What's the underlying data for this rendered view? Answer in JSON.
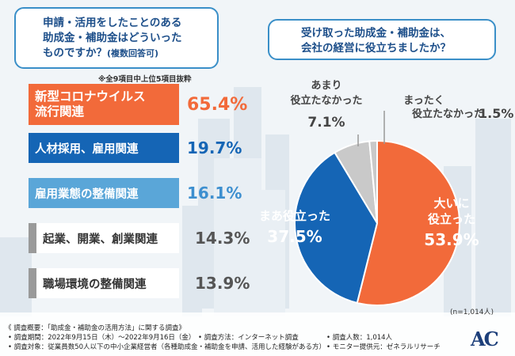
{
  "left_panel": {
    "question_line1": "申請・活用をしたことのある",
    "question_line2": "助成金・補助金はどういった",
    "question_line3": "ものですか？",
    "question_suffix": "(複数回答可)",
    "note": "※全9項目中上位5項目抜粋"
  },
  "right_panel": {
    "question_line1": "受け取った助成金・補助金は、",
    "question_line2": "会社の経営に役立ちましたか？",
    "respondents": "(n=1,014人)"
  },
  "colors": {
    "orange": "#f26a3a",
    "blue": "#1565b5",
    "light_blue": "#5aa6d8",
    "gray": "#9a9a9a",
    "light_gray": "#c9c9c9"
  },
  "chart_data": [
    {
      "type": "bar",
      "orientation": "horizontal",
      "title": "申請・活用をしたことのある助成金・補助金はどういったものですか？(複数回答可)",
      "categories": [
        "新型コロナウイルス流行関連",
        "人材採用、雇用関連",
        "雇用業態の整備関連",
        "起業、開業、創業関連",
        "職場環境の整備関連"
      ],
      "label_lines": [
        [
          "新型コロナウイルス",
          "流行関連"
        ],
        [
          "人材採用、雇用関連"
        ],
        [
          "雇用業態の整備関連"
        ],
        [
          "起業、開業、創業関連"
        ],
        [
          "職場環境の整備関連"
        ]
      ],
      "values": [
        65.4,
        19.7,
        16.1,
        14.3,
        13.9
      ],
      "value_labels": [
        "65.4%",
        "19.7%",
        "16.1%",
        "14.3%",
        "13.9%"
      ],
      "unit": "%"
    },
    {
      "type": "pie",
      "title": "受け取った助成金・補助金は、会社の経営に役立ちましたか？",
      "categories": [
        "大いに役立った",
        "まあ役立った",
        "あまり役立たなかった",
        "まったく役立たなかった"
      ],
      "values": [
        53.9,
        37.5,
        7.1,
        1.5
      ],
      "labels": [
        {
          "line1": "大いに",
          "line2": "役立った",
          "value": "53.9%"
        },
        {
          "line1": "まあ役立った",
          "value": "37.5%"
        },
        {
          "line1": "あまり",
          "line2": "役立たなかった",
          "value": "7.1%"
        },
        {
          "line1": "まったく",
          "line2": "役立たなかった",
          "value": "1.5%"
        }
      ]
    }
  ],
  "footer": {
    "title": "《 調査概要：「助成金・補助金の活用方法」に関する調査》",
    "period": "• 調査期間：2022年9月15日（木）〜2022年9月16日（金）",
    "method": "• 調査方法：インターネット調査",
    "count": "• 調査人数：1,014人",
    "target": "• 調査対象：従業員数50人以下の中小企業経営者（各種助成金・補助金を申請、活用した経験がある方）",
    "provider": "• モニター提供元：ゼネラルリサーチ",
    "logo": "AC"
  }
}
